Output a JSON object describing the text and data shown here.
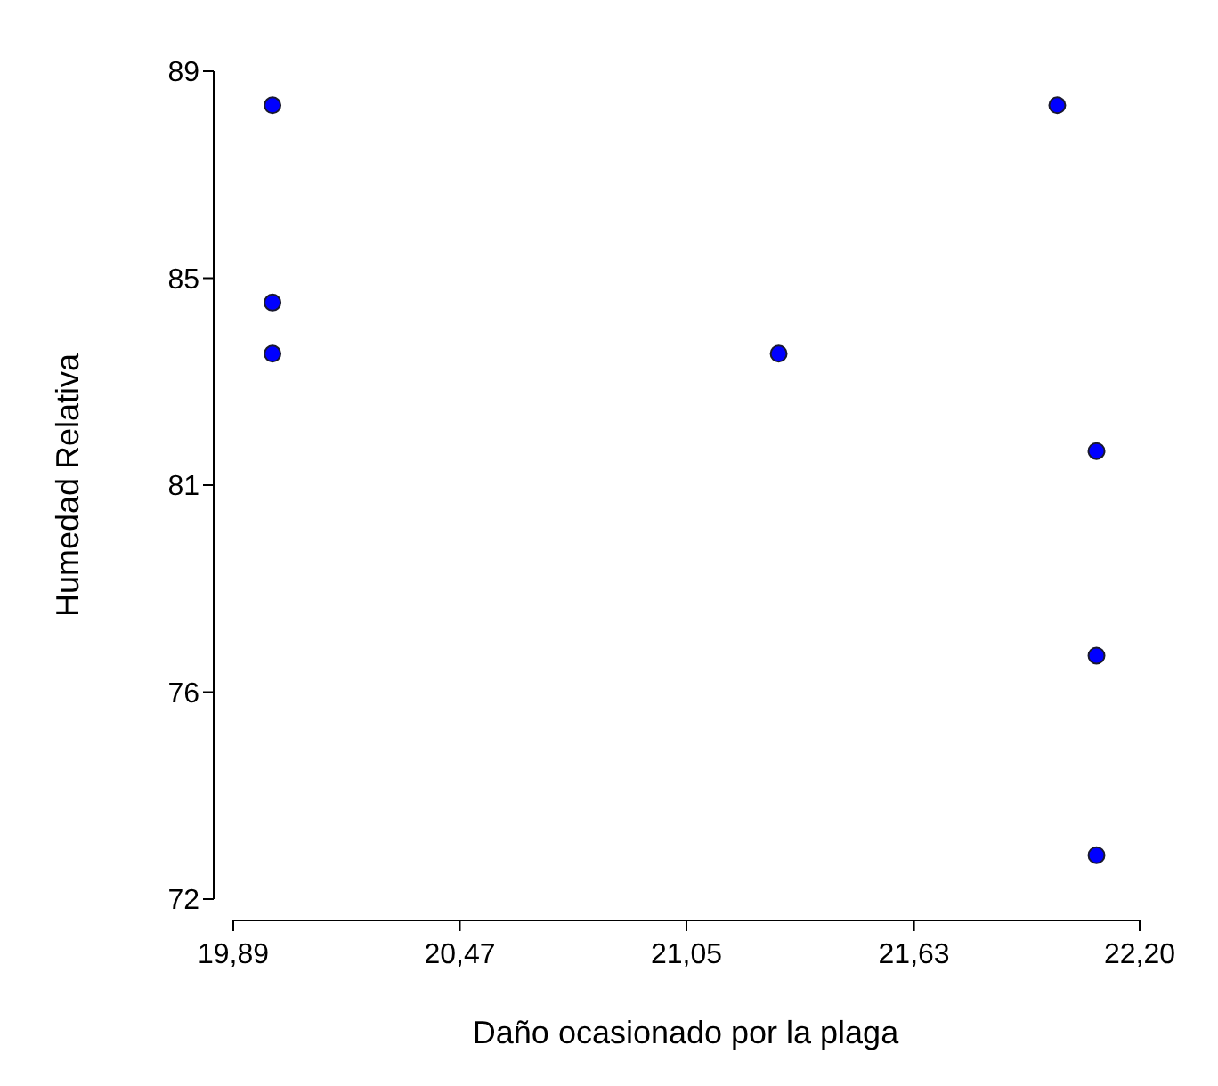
{
  "chart_data": {
    "type": "scatter",
    "xlabel": "Daño ocasionado por la plaga",
    "ylabel": "Humedad Relativa",
    "x": [
      19.99,
      19.99,
      19.99,
      21.28,
      21.99,
      22.09,
      22.09,
      22.09
    ],
    "values": [
      88.3,
      84.25,
      83.2,
      83.2,
      88.3,
      81.2,
      77.0,
      72.9
    ],
    "color": "#0000ff",
    "marker": "circle",
    "grid": false,
    "xlim": [
      19.89,
      22.2
    ],
    "xticks": [
      {
        "value": 19.89,
        "label": "19,89"
      },
      {
        "value": 20.4675,
        "label": "20,47"
      },
      {
        "value": 21.045,
        "label": "21,05"
      },
      {
        "value": 21.625,
        "label": "21,63"
      },
      {
        "value": 22.2,
        "label": "22,20"
      }
    ],
    "ylim": [
      72,
      89
    ],
    "yticks": [
      {
        "value": 72,
        "label": "72"
      },
      {
        "value": 76.25,
        "label": "76"
      },
      {
        "value": 80.5,
        "label": "81"
      },
      {
        "value": 84.75,
        "label": "85"
      },
      {
        "value": 89,
        "label": "89"
      }
    ]
  }
}
